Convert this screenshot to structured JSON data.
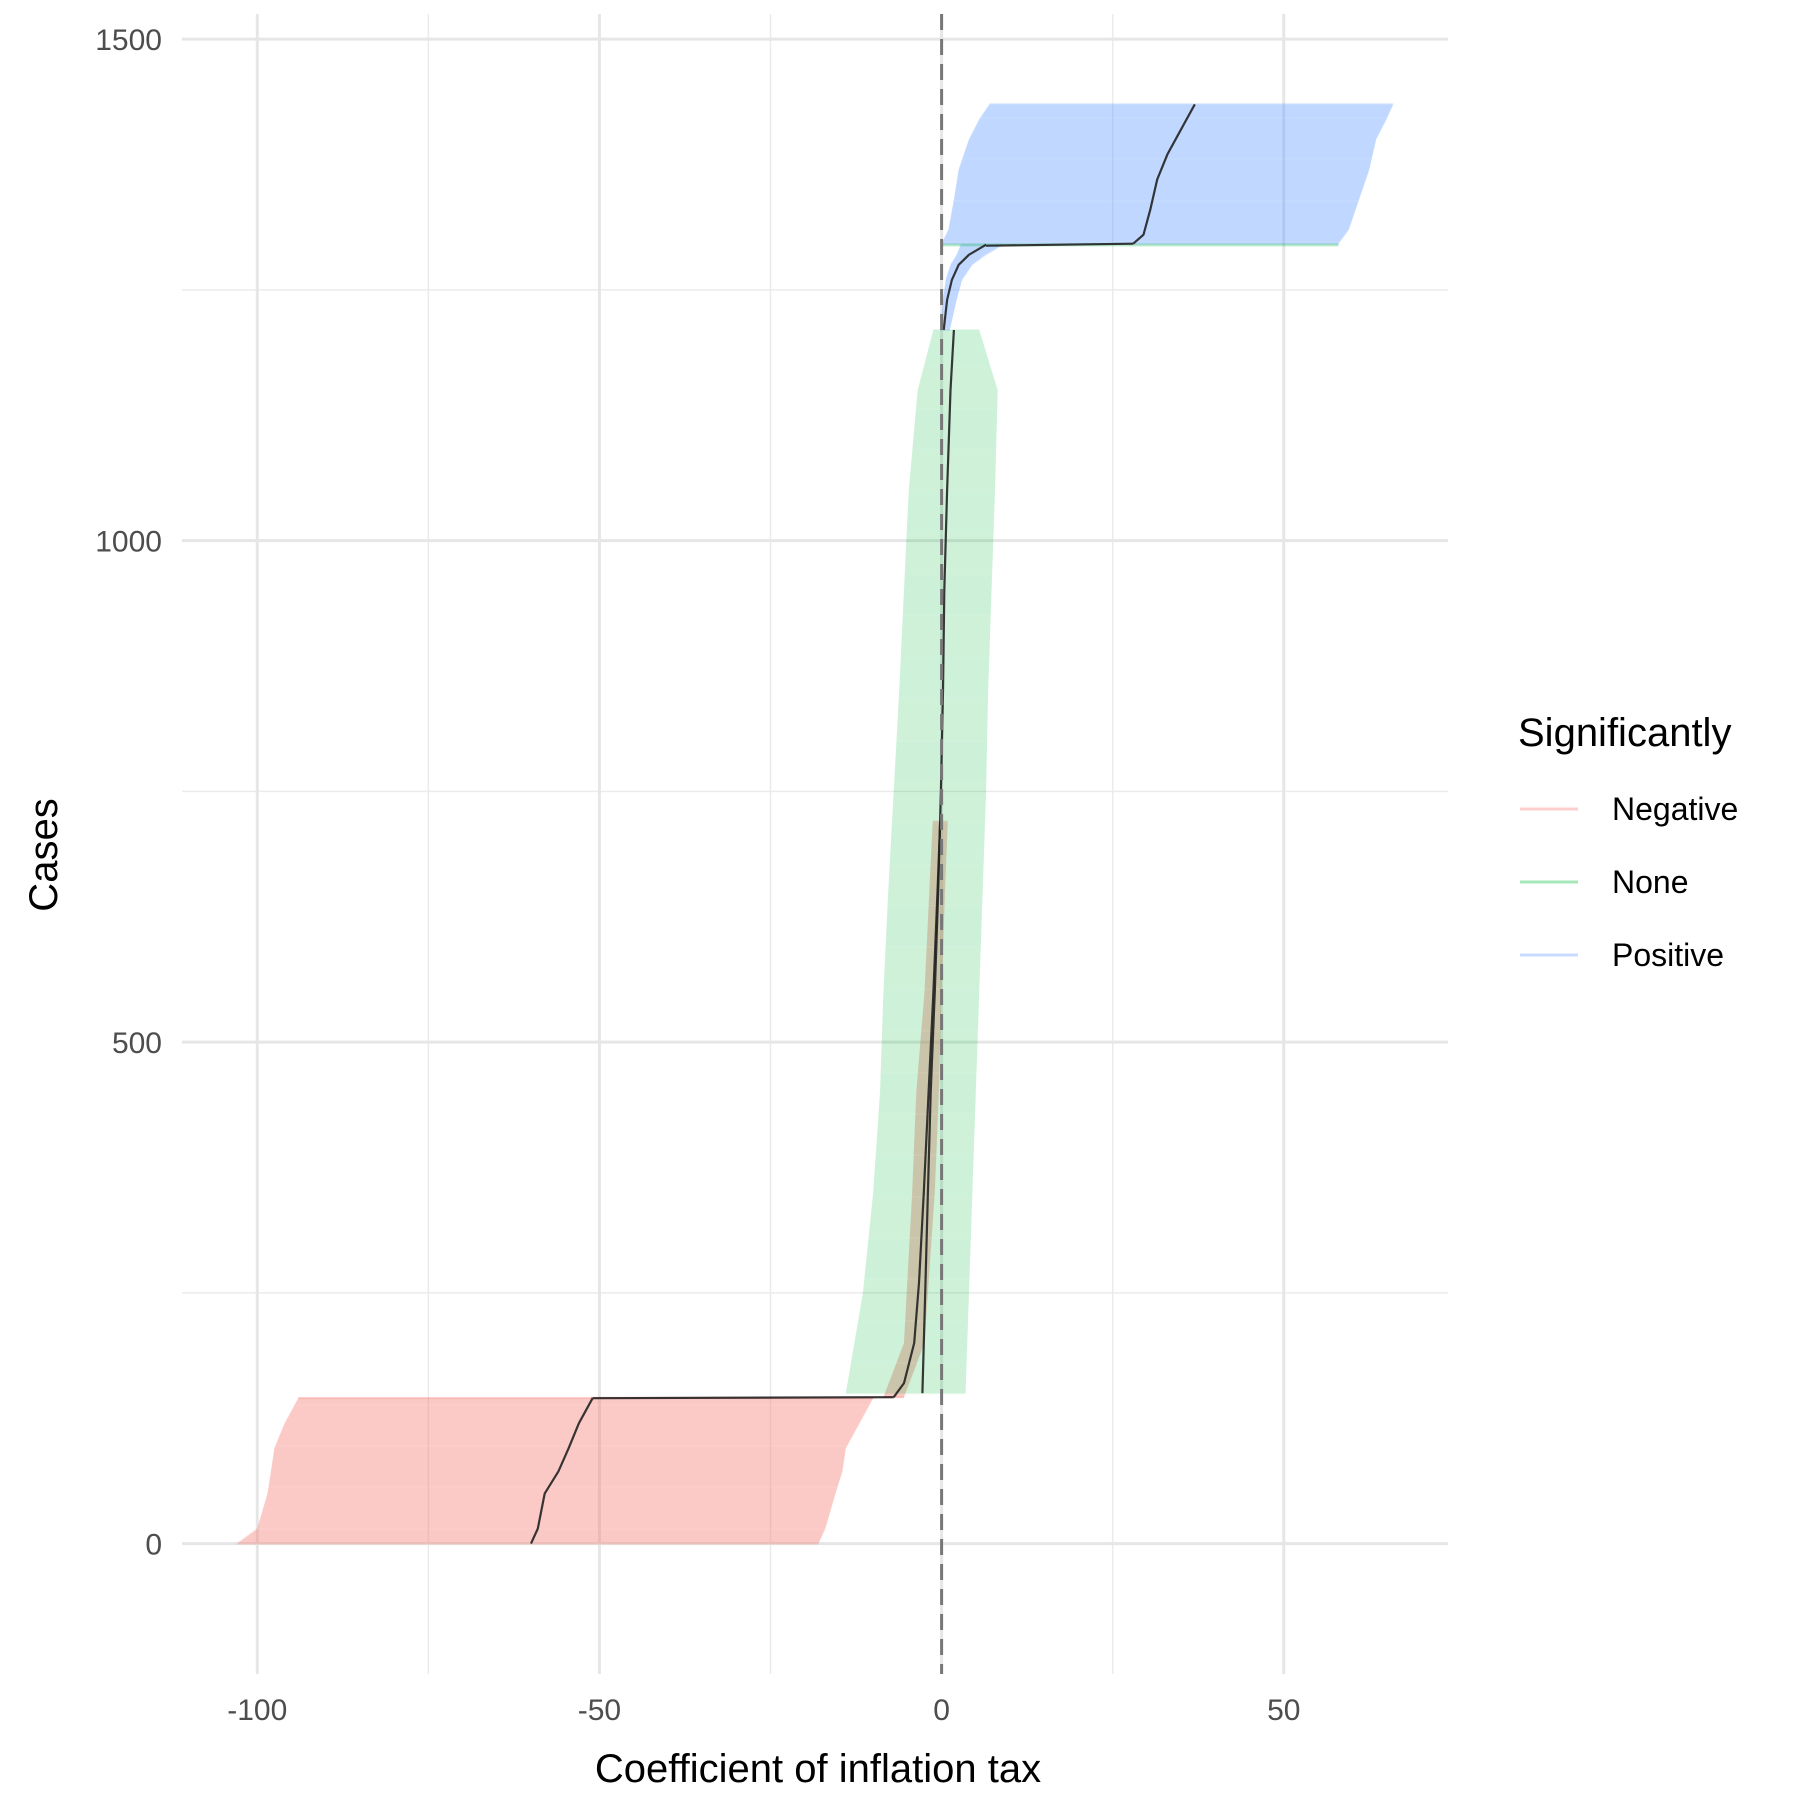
{
  "chart_data": {
    "type": "forest",
    "xlabel": "Coefficient of inflation tax",
    "ylabel": "Cases",
    "xlim": [
      -111,
      74
    ],
    "ylim": [
      -130,
      1525
    ],
    "x_ticks": [
      -100,
      -50,
      0,
      50
    ],
    "x_tick_labels": [
      "-100",
      "-50",
      "0",
      "50"
    ],
    "y_ticks": [
      0,
      500,
      1000,
      1500
    ],
    "y_tick_labels": [
      "0",
      "500",
      "1000",
      "1500"
    ],
    "grid": true,
    "reference_line": {
      "x": 0,
      "style": "dashed",
      "color": "#777777"
    },
    "legend": {
      "title": "Significantly",
      "position": "right",
      "entries": [
        {
          "label": "Negative",
          "color": "#F8766D"
        },
        {
          "label": "None",
          "color": "#00BA38"
        },
        {
          "label": "Positive",
          "color": "#619CFF"
        }
      ]
    },
    "point_estimate_line_color": "#222222",
    "segments": [
      {
        "group": "Negative",
        "y_start": 0,
        "y_end": 145,
        "estimate": [
          [
            0,
            -60
          ],
          [
            15,
            -59
          ],
          [
            50,
            -58
          ],
          [
            72,
            -56
          ],
          [
            95,
            -54.5
          ],
          [
            120,
            -53
          ],
          [
            145,
            -51
          ]
        ],
        "lower": [
          [
            0,
            -103
          ],
          [
            15,
            -100
          ],
          [
            50,
            -98.5
          ],
          [
            72,
            -98
          ],
          [
            95,
            -97.5
          ],
          [
            120,
            -96
          ],
          [
            145,
            -94
          ]
        ],
        "upper": [
          [
            0,
            -18
          ],
          [
            15,
            -17
          ],
          [
            50,
            -15.5
          ],
          [
            72,
            -14.5
          ],
          [
            95,
            -14
          ],
          [
            120,
            -12
          ],
          [
            145,
            -10
          ]
        ]
      },
      {
        "group": "Negative",
        "y_start": 145,
        "y_end": 146,
        "estimate": [
          [
            145,
            -51
          ],
          [
            146,
            -7
          ]
        ],
        "lower": [
          [
            145,
            -94
          ],
          [
            146,
            -8.5
          ]
        ],
        "upper": [
          [
            145,
            -10
          ],
          [
            146,
            -5.5
          ]
        ]
      },
      {
        "group": "Negative",
        "y_start": 146,
        "y_end": 720,
        "estimate": [
          [
            146,
            -7
          ],
          [
            160,
            -5.5
          ],
          [
            200,
            -4
          ],
          [
            260,
            -3.3
          ],
          [
            350,
            -2.6
          ],
          [
            450,
            -1.9
          ],
          [
            550,
            -1.2
          ],
          [
            650,
            -0.6
          ],
          [
            720,
            -0.2
          ]
        ],
        "lower": [
          [
            146,
            -8.5
          ],
          [
            200,
            -5.5
          ],
          [
            350,
            -4.3
          ],
          [
            450,
            -3.7
          ],
          [
            550,
            -2.5
          ],
          [
            650,
            -1.8
          ],
          [
            720,
            -1.3
          ]
        ],
        "upper": [
          [
            146,
            -5.5
          ],
          [
            200,
            -2.5
          ],
          [
            350,
            -1.0
          ],
          [
            450,
            -0.4
          ],
          [
            550,
            0.0
          ],
          [
            650,
            0.5
          ],
          [
            720,
            0.9
          ]
        ]
      },
      {
        "group": "None",
        "y_start": 150,
        "y_end": 1210,
        "estimate": [
          [
            150,
            -2.8
          ],
          [
            250,
            -2.4
          ],
          [
            350,
            -2.0
          ],
          [
            450,
            -1.6
          ],
          [
            550,
            -1.0
          ],
          [
            650,
            -0.5
          ],
          [
            750,
            -0.1
          ],
          [
            850,
            0.2
          ],
          [
            950,
            0.4
          ],
          [
            1050,
            0.8
          ],
          [
            1150,
            1.3
          ],
          [
            1210,
            1.8
          ]
        ],
        "lower": [
          [
            150,
            -14
          ],
          [
            250,
            -11.5
          ],
          [
            350,
            -10
          ],
          [
            450,
            -9
          ],
          [
            550,
            -8.5
          ],
          [
            650,
            -7.8
          ],
          [
            750,
            -7
          ],
          [
            850,
            -6.2
          ],
          [
            950,
            -5.5
          ],
          [
            1050,
            -4.8
          ],
          [
            1150,
            -3.5
          ],
          [
            1210,
            -1.2
          ]
        ],
        "upper": [
          [
            150,
            3.5
          ],
          [
            250,
            4.0
          ],
          [
            350,
            4.5
          ],
          [
            450,
            5.0
          ],
          [
            550,
            5.5
          ],
          [
            650,
            6.0
          ],
          [
            750,
            6.5
          ],
          [
            850,
            6.8
          ],
          [
            950,
            7.3
          ],
          [
            1050,
            7.8
          ],
          [
            1150,
            8.2
          ],
          [
            1210,
            5.5
          ]
        ]
      },
      {
        "group": "Positive",
        "y_start": 1210,
        "y_end": 1295,
        "estimate": [
          [
            1210,
            0.3
          ],
          [
            1240,
            0.8
          ],
          [
            1260,
            1.5
          ],
          [
            1275,
            2.5
          ],
          [
            1285,
            4
          ],
          [
            1295,
            6.5
          ]
        ],
        "lower": [
          [
            1210,
            -0.2
          ],
          [
            1240,
            0.2
          ],
          [
            1260,
            0.6
          ],
          [
            1275,
            1.3
          ],
          [
            1285,
            2.2
          ],
          [
            1295,
            2.8
          ]
        ],
        "upper": [
          [
            1210,
            1.2
          ],
          [
            1240,
            2.2
          ],
          [
            1260,
            3.0
          ],
          [
            1275,
            4.5
          ],
          [
            1285,
            6.5
          ],
          [
            1295,
            9
          ]
        ]
      },
      {
        "group": "None",
        "y_start": 1294,
        "y_end": 1296,
        "estimate": [
          [
            1294,
            6.5
          ],
          [
            1296,
            28
          ]
        ],
        "lower": [
          [
            1294,
            0
          ],
          [
            1296,
            0
          ]
        ],
        "upper": [
          [
            1294,
            58
          ],
          [
            1296,
            58
          ]
        ]
      },
      {
        "group": "Positive",
        "y_start": 1296,
        "y_end": 1435,
        "estimate": [
          [
            1296,
            28
          ],
          [
            1305,
            29.5
          ],
          [
            1330,
            30.5
          ],
          [
            1360,
            31.5
          ],
          [
            1385,
            33
          ],
          [
            1410,
            35
          ],
          [
            1435,
            37
          ]
        ],
        "lower": [
          [
            1296,
            0
          ],
          [
            1310,
            1
          ],
          [
            1340,
            1.8
          ],
          [
            1370,
            2.5
          ],
          [
            1400,
            4
          ],
          [
            1420,
            5.5
          ],
          [
            1435,
            7
          ]
        ],
        "upper": [
          [
            1296,
            58
          ],
          [
            1310,
            59.5
          ],
          [
            1340,
            61
          ],
          [
            1370,
            62.5
          ],
          [
            1400,
            63.5
          ],
          [
            1420,
            65
          ],
          [
            1435,
            66
          ]
        ]
      }
    ]
  }
}
